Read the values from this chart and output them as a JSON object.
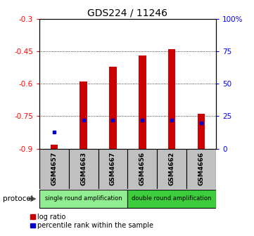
{
  "title": "GDS224 / 11246",
  "samples": [
    "GSM4657",
    "GSM4663",
    "GSM4667",
    "GSM4656",
    "GSM4662",
    "GSM4666"
  ],
  "log_ratios": [
    -0.88,
    -0.59,
    -0.52,
    -0.47,
    -0.44,
    -0.74
  ],
  "percentile_ranks": [
    13,
    22,
    22,
    22,
    22,
    20
  ],
  "ylim_left": [
    -0.9,
    -0.3
  ],
  "ylim_right": [
    0,
    100
  ],
  "yticks_left": [
    -0.9,
    -0.75,
    -0.6,
    -0.45,
    -0.3
  ],
  "yticks_right": [
    0,
    25,
    50,
    75,
    100
  ],
  "ytick_labels_left": [
    "-0.9",
    "-0.75",
    "-0.6",
    "-0.45",
    "-0.3"
  ],
  "ytick_labels_right": [
    "0",
    "25",
    "50",
    "75",
    "100%"
  ],
  "group_labels": [
    "single round amplification",
    "double round amplification"
  ],
  "group_colors": [
    "#90EE90",
    "#3CCC3C"
  ],
  "bar_color": "#CC0000",
  "percentile_color": "#0000CC",
  "bar_width": 0.25,
  "protocol_label": "protocol",
  "legend_labels": [
    "log ratio",
    "percentile rank within the sample"
  ],
  "legend_colors": [
    "#CC0000",
    "#0000CC"
  ]
}
